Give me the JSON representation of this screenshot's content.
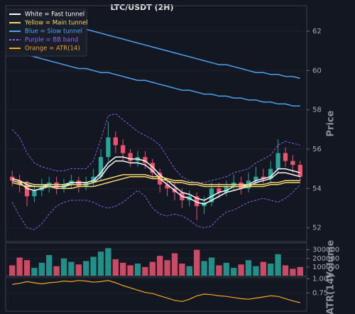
{
  "chart_data": [
    {
      "type": "candlestick",
      "title": "LTC/USDT (2H)",
      "y_label": "Price",
      "ylim": [
        51.3,
        63.3
      ],
      "yticks": [
        52,
        54,
        56,
        58,
        60,
        62
      ],
      "grid": true,
      "up_color": "#26a69a",
      "down_color": "#ef5370",
      "open": [
        54.6,
        54.4,
        54.2,
        53.6,
        53.9,
        54.1,
        54.3,
        54.0,
        54.2,
        54.4,
        54.1,
        54.3,
        54.6,
        55.6,
        56.6,
        56.2,
        55.8,
        55.4,
        55.6,
        55.3,
        54.8,
        54.2,
        54.0,
        53.8,
        53.4,
        53.6,
        53.1,
        53.3,
        54.0,
        53.8,
        54.1,
        54.3,
        54.0,
        54.4,
        54.6,
        54.5,
        55.0,
        55.8,
        55.4,
        55.2
      ],
      "high": [
        54.9,
        54.7,
        54.4,
        54.2,
        54.5,
        54.6,
        54.6,
        54.5,
        54.7,
        54.6,
        54.6,
        55.0,
        56.0,
        57.4,
        56.9,
        56.5,
        56.0,
        55.9,
        55.9,
        55.5,
        55.0,
        54.5,
        54.3,
        54.0,
        53.9,
        53.8,
        53.6,
        54.3,
        54.3,
        54.4,
        54.7,
        54.6,
        54.8,
        55.1,
        55.0,
        55.4,
        56.5,
        56.1,
        55.7,
        55.4
      ],
      "low": [
        54.1,
        53.8,
        53.1,
        53.3,
        53.6,
        53.8,
        53.7,
        53.8,
        54.0,
        53.8,
        53.9,
        54.1,
        54.4,
        55.4,
        55.8,
        55.4,
        55.1,
        55.1,
        55.0,
        54.5,
        53.8,
        53.6,
        53.4,
        53.0,
        53.1,
        52.4,
        52.7,
        53.1,
        53.5,
        53.6,
        53.9,
        53.7,
        53.8,
        54.2,
        54.2,
        54.3,
        54.8,
        55.1,
        54.8,
        54.4
      ],
      "close": [
        54.4,
        54.2,
        53.6,
        53.9,
        54.1,
        54.3,
        54.0,
        54.2,
        54.4,
        54.1,
        54.3,
        54.6,
        55.6,
        56.6,
        56.2,
        55.8,
        55.4,
        55.6,
        55.3,
        54.8,
        54.2,
        54.0,
        53.8,
        53.4,
        53.6,
        53.1,
        53.3,
        54.0,
        53.8,
        54.1,
        54.3,
        54.0,
        54.4,
        54.6,
        54.5,
        55.0,
        55.8,
        55.4,
        55.2,
        54.6
      ],
      "series": [
        {
          "name": "White = Fast tunnel",
          "color": "#ffffff",
          "style": "solid",
          "upper": [
            54.5,
            54.4,
            54.2,
            54.1,
            54.1,
            54.2,
            54.2,
            54.2,
            54.3,
            54.3,
            54.3,
            54.4,
            54.8,
            55.3,
            55.6,
            55.6,
            55.5,
            55.5,
            55.4,
            55.1,
            54.7,
            54.4,
            54.1,
            53.8,
            53.7,
            53.5,
            53.4,
            53.6,
            53.8,
            53.9,
            54.1,
            54.1,
            54.2,
            54.4,
            54.5,
            54.6,
            55.0,
            55.0,
            54.9,
            54.8
          ],
          "lower": [
            54.4,
            54.3,
            54.0,
            53.9,
            54.0,
            54.1,
            54.1,
            54.1,
            54.2,
            54.2,
            54.2,
            54.3,
            54.6,
            55.1,
            55.4,
            55.4,
            55.3,
            55.3,
            55.2,
            54.9,
            54.5,
            54.2,
            53.9,
            53.6,
            53.5,
            53.3,
            53.2,
            53.4,
            53.6,
            53.8,
            53.9,
            54.0,
            54.1,
            54.3,
            54.4,
            54.5,
            54.8,
            54.8,
            54.7,
            54.6
          ]
        },
        {
          "name": "Yellow = Main tunnel",
          "color": "#f5d76e",
          "style": "solid",
          "upper": [
            54.4,
            54.3,
            54.3,
            54.2,
            54.2,
            54.2,
            54.2,
            54.2,
            54.2,
            54.2,
            54.2,
            54.3,
            54.4,
            54.5,
            54.6,
            54.7,
            54.7,
            54.7,
            54.7,
            54.6,
            54.6,
            54.5,
            54.4,
            54.4,
            54.3,
            54.3,
            54.2,
            54.2,
            54.2,
            54.2,
            54.2,
            54.2,
            54.2,
            54.2,
            54.2,
            54.3,
            54.3,
            54.4,
            54.4,
            54.4
          ],
          "lower": [
            54.3,
            54.2,
            54.1,
            54.1,
            54.1,
            54.1,
            54.0,
            54.0,
            54.0,
            54.1,
            54.1,
            54.1,
            54.2,
            54.3,
            54.4,
            54.5,
            54.6,
            54.6,
            54.6,
            54.5,
            54.5,
            54.4,
            54.3,
            54.3,
            54.2,
            54.2,
            54.1,
            54.1,
            54.1,
            54.1,
            54.1,
            54.1,
            54.1,
            54.1,
            54.1,
            54.2,
            54.2,
            54.3,
            54.3,
            54.3
          ]
        },
        {
          "name": "Blue = Slow tunnel",
          "color": "#4aa3f0",
          "style": "solid",
          "upper": [
            63.0,
            62.9,
            62.8,
            62.7,
            62.7,
            62.6,
            62.5,
            62.4,
            62.3,
            62.2,
            62.1,
            62.0,
            61.9,
            61.8,
            61.7,
            61.6,
            61.5,
            61.4,
            61.3,
            61.2,
            61.1,
            61.0,
            60.9,
            60.8,
            60.7,
            60.6,
            60.5,
            60.4,
            60.3,
            60.3,
            60.2,
            60.1,
            60.0,
            59.9,
            59.9,
            59.8,
            59.8,
            59.7,
            59.7,
            59.6
          ],
          "lower": [
            61.0,
            60.9,
            60.8,
            60.7,
            60.6,
            60.5,
            60.4,
            60.3,
            60.2,
            60.1,
            60.1,
            60.0,
            59.9,
            59.9,
            59.8,
            59.7,
            59.6,
            59.5,
            59.5,
            59.4,
            59.3,
            59.2,
            59.1,
            59.0,
            59.0,
            58.9,
            58.8,
            58.8,
            58.7,
            58.7,
            58.6,
            58.6,
            58.5,
            58.5,
            58.4,
            58.4,
            58.3,
            58.3,
            58.2,
            58.2
          ]
        },
        {
          "name": "Purple = BB band",
          "color": "#8b6cf0",
          "style": "dashed",
          "upper": [
            57.0,
            56.6,
            55.8,
            55.3,
            55.1,
            55.0,
            54.9,
            54.9,
            55.0,
            55.0,
            55.0,
            55.4,
            56.5,
            57.7,
            57.8,
            57.5,
            57.2,
            56.9,
            56.7,
            56.5,
            56.2,
            55.6,
            55.0,
            54.6,
            54.4,
            54.3,
            54.3,
            54.4,
            54.5,
            54.6,
            54.8,
            54.9,
            55.0,
            55.3,
            55.5,
            55.7,
            56.2,
            56.4,
            56.3,
            56.2
          ],
          "lower": [
            53.3,
            52.6,
            52.0,
            51.9,
            52.2,
            52.7,
            53.1,
            53.3,
            53.4,
            53.4,
            53.4,
            53.3,
            53.1,
            53.0,
            53.1,
            53.3,
            53.6,
            53.9,
            53.6,
            53.0,
            52.7,
            52.6,
            52.7,
            52.6,
            52.4,
            52.1,
            52.0,
            52.1,
            52.5,
            52.8,
            52.9,
            53.1,
            53.3,
            53.4,
            53.5,
            53.4,
            53.3,
            53.5,
            53.8,
            54.2
          ]
        }
      ]
    },
    {
      "type": "bar",
      "y_label": "Volume",
      "ylim": [
        0,
        380000
      ],
      "yticks": [
        100000,
        200000,
        300000
      ],
      "grid": true,
      "values": [
        120000,
        210000,
        180000,
        90000,
        150000,
        240000,
        110000,
        200000,
        160000,
        130000,
        170000,
        220000,
        280000,
        320000,
        190000,
        150000,
        120000,
        140000,
        100000,
        160000,
        230000,
        180000,
        260000,
        140000,
        110000,
        300000,
        170000,
        210000,
        120000,
        150000,
        90000,
        130000,
        180000,
        110000,
        160000,
        140000,
        250000,
        120000,
        80000,
        100000
      ]
    },
    {
      "type": "line",
      "y_label": "ATR(14)",
      "ylim": [
        0.43,
        1.03
      ],
      "yticks": [
        {
          "value": 0.75,
          "label": "0.75"
        },
        {
          "value": 1,
          "label": "1.00"
        }
      ],
      "grid": true,
      "series": [
        {
          "name": "Orange = ATR(14)",
          "color": "#f5a623",
          "values": [
            0.9,
            0.92,
            0.95,
            0.93,
            0.91,
            0.93,
            0.94,
            0.96,
            0.95,
            0.97,
            0.96,
            0.94,
            0.95,
            0.97,
            0.93,
            0.88,
            0.84,
            0.8,
            0.76,
            0.74,
            0.7,
            0.66,
            0.62,
            0.6,
            0.64,
            0.7,
            0.73,
            0.72,
            0.7,
            0.69,
            0.67,
            0.65,
            0.64,
            0.66,
            0.68,
            0.7,
            0.69,
            0.65,
            0.61,
            0.58
          ]
        }
      ]
    }
  ]
}
